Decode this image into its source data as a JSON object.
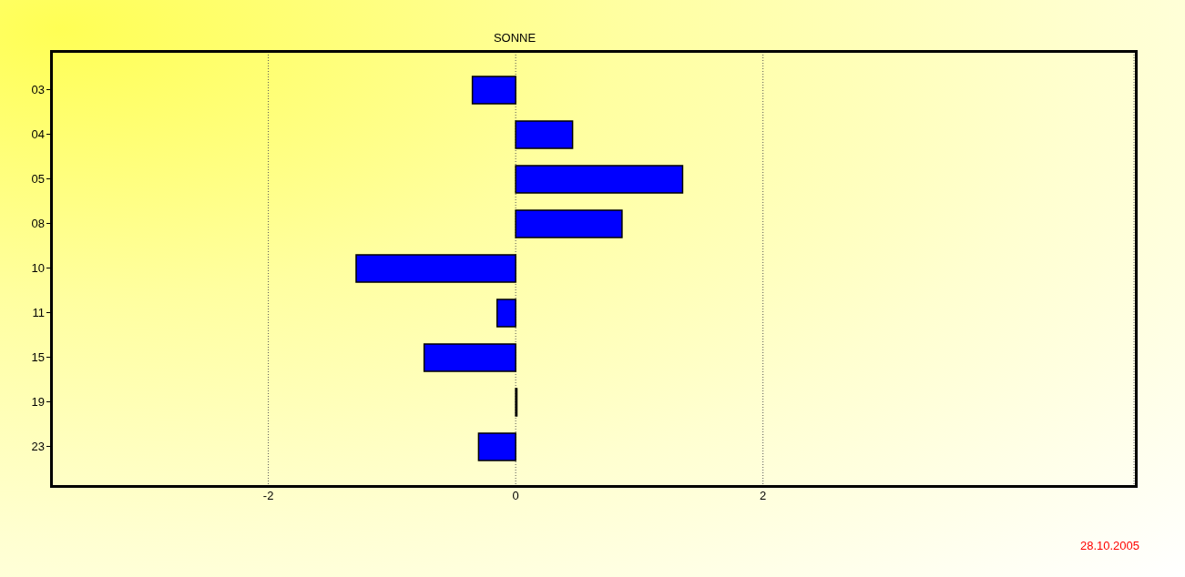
{
  "chart_data": {
    "type": "bar",
    "orientation": "horizontal",
    "title": "SONNE",
    "categories": [
      "03",
      "04",
      "05",
      "08",
      "10",
      "11",
      "15",
      "19",
      "23"
    ],
    "values": [
      -0.35,
      0.46,
      1.35,
      0.86,
      -1.29,
      -0.15,
      -0.74,
      0.01,
      -0.3
    ],
    "color": "#0000ff",
    "xlim": [
      -3.75,
      5
    ],
    "xticks": [
      -2,
      0,
      2
    ],
    "grid": "x",
    "annotations": [
      "28.10.2005"
    ]
  }
}
